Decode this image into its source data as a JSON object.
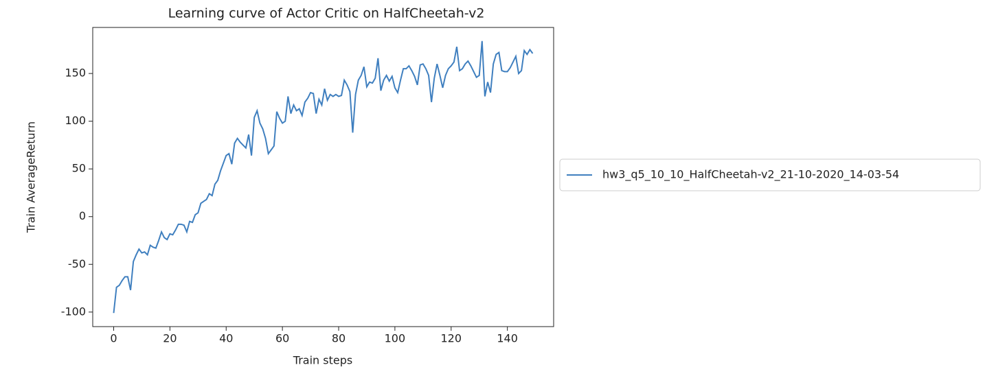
{
  "chart_data": {
    "type": "line",
    "title": "Learning curve of Actor Critic on HalfCheetah-v2",
    "xlabel": "Train steps",
    "ylabel": "Train AverageReturn",
    "x": [
      0,
      1,
      2,
      3,
      4,
      5,
      6,
      7,
      8,
      9,
      10,
      11,
      12,
      13,
      14,
      15,
      16,
      17,
      18,
      19,
      20,
      21,
      22,
      23,
      24,
      25,
      26,
      27,
      28,
      29,
      30,
      31,
      32,
      33,
      34,
      35,
      36,
      37,
      38,
      39,
      40,
      41,
      42,
      43,
      44,
      45,
      46,
      47,
      48,
      49,
      50,
      51,
      52,
      53,
      54,
      55,
      56,
      57,
      58,
      59,
      60,
      61,
      62,
      63,
      64,
      65,
      66,
      67,
      68,
      69,
      70,
      71,
      72,
      73,
      74,
      75,
      76,
      77,
      78,
      79,
      80,
      81,
      82,
      83,
      84,
      85,
      86,
      87,
      88,
      89,
      90,
      91,
      92,
      93,
      94,
      95,
      96,
      97,
      98,
      99,
      100,
      101,
      102,
      103,
      104,
      105,
      106,
      107,
      108,
      109,
      110,
      111,
      112,
      113,
      114,
      115,
      116,
      117,
      118,
      119,
      120,
      121,
      122,
      123,
      124,
      125,
      126,
      127,
      128,
      129,
      130,
      131,
      132,
      133,
      134,
      135,
      136,
      137,
      138,
      139,
      140,
      141,
      142,
      143,
      144,
      145,
      146,
      147,
      148,
      149
    ],
    "series": [
      {
        "name": "hw3_q5_10_10_HalfCheetah-v2_21-10-2020_14-03-54",
        "color": "#3f7fbf",
        "values": [
          -101,
          -74,
          -72,
          -67,
          -63,
          -63,
          -77,
          -47,
          -40,
          -34,
          -38,
          -37,
          -40,
          -30,
          -32,
          -33,
          -25,
          -16,
          -22,
          -24,
          -18,
          -19,
          -14,
          -8,
          -8,
          -9,
          -16,
          -5,
          -6,
          2,
          4,
          14,
          16,
          18,
          24,
          22,
          34,
          38,
          48,
          56,
          64,
          66,
          55,
          77,
          82,
          78,
          75,
          72,
          86,
          64,
          104,
          111,
          98,
          92,
          82,
          66,
          70,
          74,
          110,
          103,
          98,
          100,
          126,
          108,
          117,
          111,
          113,
          106,
          120,
          124,
          130,
          129,
          108,
          123,
          117,
          134,
          122,
          128,
          126,
          128,
          126,
          127,
          143,
          138,
          131,
          88,
          128,
          143,
          148,
          157,
          136,
          141,
          140,
          145,
          166,
          132,
          143,
          148,
          142,
          147,
          135,
          130,
          143,
          155,
          155,
          158,
          153,
          147,
          138,
          159,
          160,
          155,
          148,
          120,
          145,
          160,
          148,
          135,
          148,
          155,
          158,
          162,
          178,
          153,
          155,
          160,
          163,
          158,
          152,
          146,
          148,
          184,
          126,
          141,
          130,
          160,
          170,
          172,
          153,
          152,
          152,
          156,
          162,
          168,
          150,
          153,
          174,
          170,
          175,
          171
        ]
      }
    ],
    "xlim": [
      -7.45,
      156.45
    ],
    "ylim": [
      -115.25,
      198.25
    ],
    "xticks": [
      0,
      20,
      40,
      60,
      80,
      100,
      120,
      140
    ],
    "yticks": [
      -100,
      -50,
      0,
      50,
      100,
      150
    ],
    "legend": "outside-right"
  }
}
